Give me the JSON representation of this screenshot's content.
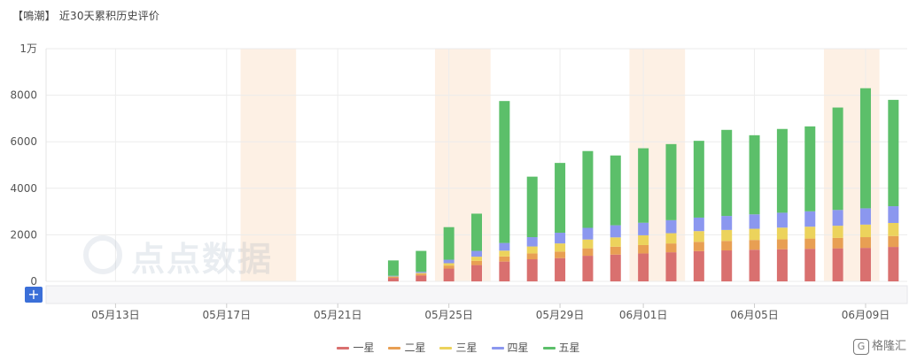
{
  "title": "【鳴潮】 近30天累积历史评价",
  "watermark": "点点数据",
  "zoom_button": "+",
  "corner_logo": "格隆汇",
  "chart_data": {
    "type": "bar",
    "stacked": true,
    "y_tick_labels": [
      "0",
      "2000",
      "4000",
      "6000",
      "8000",
      "1万"
    ],
    "y_ticks": [
      0,
      2000,
      4000,
      6000,
      8000,
      10000
    ],
    "ylim": [
      0,
      10000
    ],
    "x_tick_labels": [
      "05月13日",
      "05月17日",
      "05月21日",
      "05月25日",
      "05月29日",
      "06月01日",
      "06月05日",
      "06月09日"
    ],
    "categories": [
      "05月11日",
      "05月12日",
      "05月13日",
      "05月14日",
      "05月15日",
      "05月16日",
      "05月17日",
      "05月18日",
      "05月19日",
      "05月20日",
      "05月21日",
      "05月22日",
      "05月23日",
      "05月24日",
      "05月25日",
      "05月26日",
      "05月27日",
      "05月28日",
      "05月29日",
      "05月30日",
      "05月31日",
      "06月01日",
      "06月02日",
      "06月03日",
      "06月04日",
      "06月05日",
      "06月06日",
      "06月07日",
      "06月08日",
      "06月09日",
      "06月10日"
    ],
    "weekend_shading": [
      [
        "05月18日",
        "05月19日"
      ],
      [
        "05月25日",
        "05月26日"
      ],
      [
        "06月01日",
        "06月02日"
      ],
      [
        "06月08日",
        "06月09日"
      ]
    ],
    "colors": [
      "#d9706f",
      "#e89f53",
      "#ecd35c",
      "#8b97ef",
      "#5cbf6a"
    ],
    "series": [
      {
        "name": "一星",
        "values": [
          0,
          0,
          0,
          0,
          0,
          0,
          0,
          0,
          0,
          0,
          0,
          0,
          150,
          250,
          550,
          700,
          850,
          950,
          1000,
          1100,
          1150,
          1200,
          1250,
          1300,
          1330,
          1360,
          1380,
          1400,
          1420,
          1440,
          1480
        ]
      },
      {
        "name": "二星",
        "values": [
          0,
          0,
          0,
          0,
          0,
          0,
          0,
          0,
          0,
          0,
          0,
          0,
          40,
          70,
          130,
          180,
          220,
          250,
          280,
          320,
          340,
          360,
          380,
          400,
          410,
          420,
          430,
          440,
          450,
          460,
          470
        ]
      },
      {
        "name": "三星",
        "values": [
          0,
          0,
          0,
          0,
          0,
          0,
          0,
          0,
          0,
          0,
          0,
          0,
          20,
          40,
          100,
          180,
          250,
          300,
          350,
          380,
          400,
          420,
          440,
          460,
          470,
          480,
          500,
          510,
          520,
          540,
          560
        ]
      },
      {
        "name": "四星",
        "values": [
          0,
          0,
          0,
          0,
          0,
          0,
          0,
          0,
          0,
          0,
          0,
          0,
          30,
          50,
          150,
          250,
          330,
          400,
          460,
          500,
          520,
          540,
          560,
          580,
          600,
          620,
          640,
          660,
          680,
          700,
          720
        ]
      },
      {
        "name": "五星",
        "values": [
          0,
          0,
          0,
          0,
          0,
          0,
          0,
          0,
          0,
          0,
          0,
          0,
          660,
          900,
          1400,
          1600,
          6100,
          2600,
          3000,
          3300,
          3000,
          3200,
          3270,
          3300,
          3700,
          3400,
          3600,
          3650,
          4400,
          5160,
          4570
        ]
      }
    ],
    "legend_position": "bottom-center",
    "grid": true
  }
}
